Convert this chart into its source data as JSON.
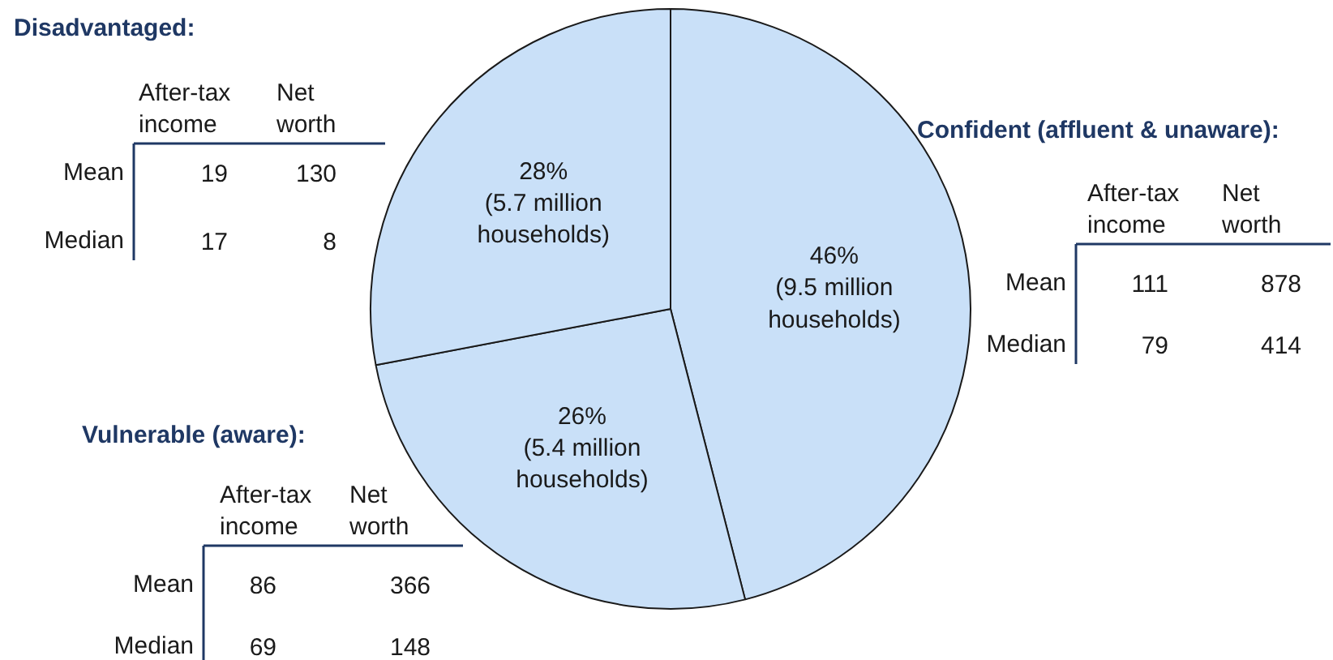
{
  "chart_data": {
    "type": "pie",
    "categories": [
      null,
      null,
      null
    ],
    "values": [
      46,
      26,
      28
    ],
    "colors": [
      "#c9e0f8",
      "#c9e0f8",
      "#c9e0f8"
    ],
    "value_labels": [
      "46%\n(9.5 million\nhouseholds)",
      "26%\n(5.4 million\nhouseholds)",
      "28%\n(5.7 million\nhouseholds)"
    ],
    "annotations": [
      "Disadvantaged:",
      "After-tax\nincome",
      "Net\nworth",
      "Mean",
      "19",
      "130",
      "Median",
      "17",
      "8",
      "Vulnerable (aware):",
      "After-tax\nincome",
      "Net\nworth",
      "Mean",
      "86",
      "366",
      "Median",
      "69",
      "148",
      "Confident (affluent & unaware):",
      "After-tax\nincome",
      "Net\nworth",
      "Mean",
      "111",
      "878",
      "Median",
      "79",
      "414"
    ]
  }
}
